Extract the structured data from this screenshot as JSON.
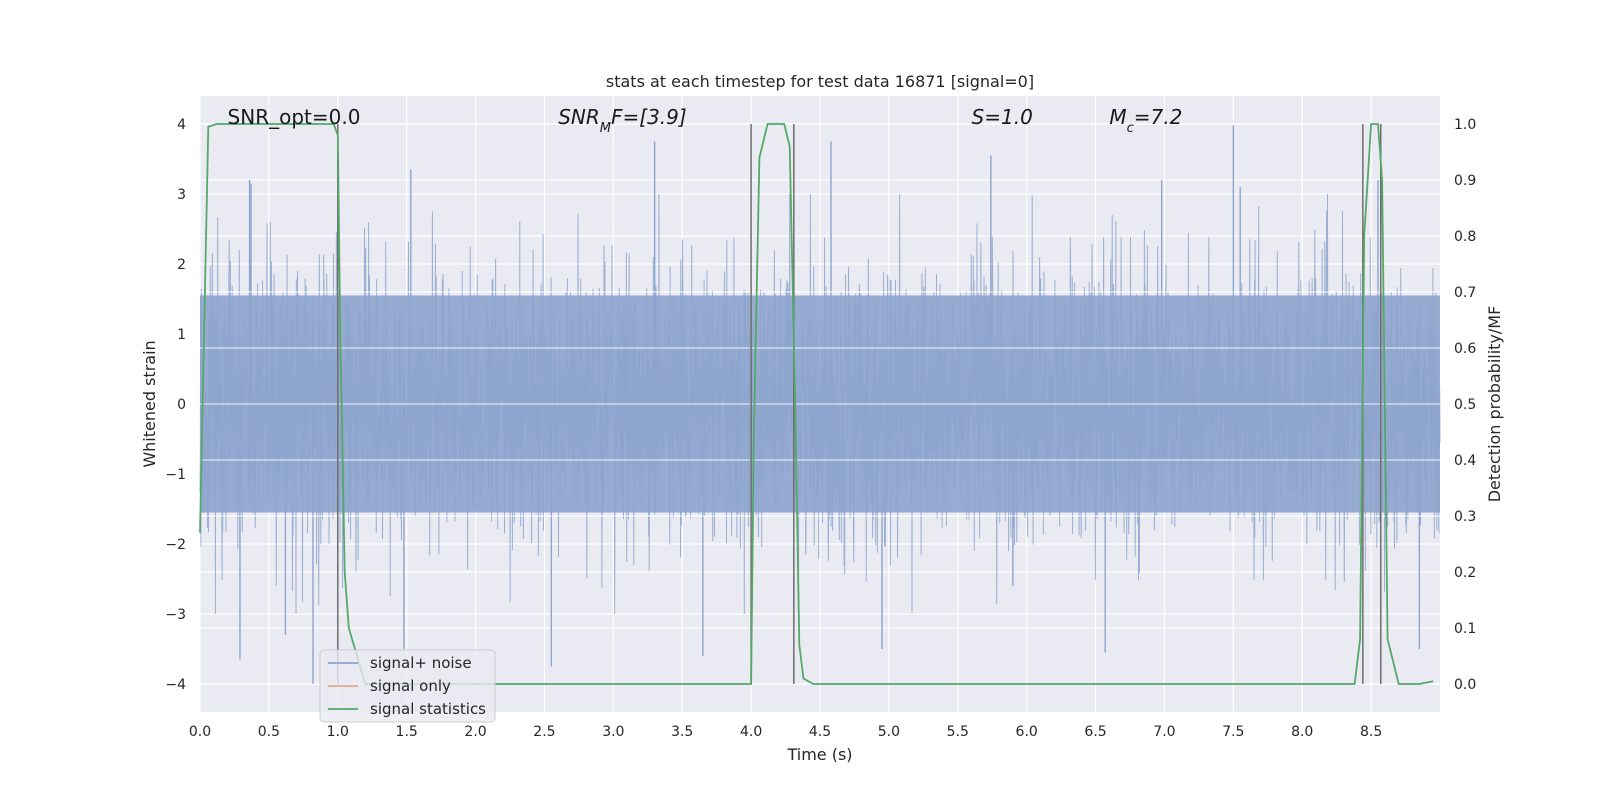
{
  "chart_data": {
    "type": "line",
    "title": "stats at each timestep for test data 16871 [signal=0]",
    "xlabel": "Time (s)",
    "ylabel": "Whitened strain",
    "y2label": "Detection probability/MF",
    "xlim": [
      0.0,
      9.0
    ],
    "ylim": [
      -4.4,
      4.4
    ],
    "y2lim": [
      -0.05,
      1.05
    ],
    "xticks": [
      "0.0",
      "0.5",
      "1.0",
      "1.5",
      "2.0",
      "2.5",
      "3.0",
      "3.5",
      "4.0",
      "4.5",
      "5.0",
      "5.5",
      "6.0",
      "6.5",
      "7.0",
      "7.5",
      "8.0",
      "8.5"
    ],
    "yticks": [
      "4",
      "3",
      "2",
      "1",
      "0",
      "−1",
      "−2",
      "−3",
      "−4"
    ],
    "y2ticks": [
      "1.0",
      "0.9",
      "0.8",
      "0.7",
      "0.6",
      "0.5",
      "0.4",
      "0.3",
      "0.2",
      "0.1",
      "0.0"
    ],
    "grid": true,
    "legend_placement": "lower-left",
    "annotations": [
      {
        "text": "SNR_opt=0.0",
        "x": 0.2
      },
      {
        "html": "SNR<tspan baseline-shift='sub' font-size='13'>M</tspan>F=[3.9]",
        "text": "SNRMF=[3.9]",
        "x": 2.6
      },
      {
        "html": "S=1.0",
        "text": "S=1.0",
        "x": 5.6
      },
      {
        "html": "M<tspan baseline-shift='sub' font-size='13'>c</tspan>=7.2",
        "text": "Mc=7.2",
        "x": 6.6
      }
    ],
    "series": [
      {
        "name": "signal+ noise",
        "color": "#8da4cd",
        "axis": "left",
        "description_only": true,
        "sample_rate": 2048,
        "x_range": [
          0.0,
          9.0
        ],
        "amplitude_std": 1.0
      },
      {
        "name": "signal only",
        "color": "#e8a48a",
        "axis": "left",
        "x": [],
        "y": []
      },
      {
        "name": "signal statistics",
        "color": "#55a868",
        "axis": "right",
        "x": [
          0.0,
          0.06,
          0.12,
          0.25,
          0.5,
          0.75,
          0.97,
          1.0,
          1.02,
          1.05,
          1.08,
          1.2,
          1.5,
          2.0,
          3.0,
          3.5,
          3.95,
          4.0,
          4.02,
          4.06,
          4.12,
          4.18,
          4.24,
          4.28,
          4.32,
          4.35,
          4.38,
          4.45,
          5.0,
          6.0,
          7.0,
          8.0,
          8.38,
          8.42,
          8.45,
          8.5,
          8.55,
          8.58,
          8.62,
          8.7,
          8.75,
          8.85,
          8.95
        ],
        "y": [
          0.27,
          0.995,
          1.0,
          1.0,
          1.0,
          1.0,
          1.0,
          0.98,
          0.6,
          0.2,
          0.1,
          0.0,
          0.0,
          0.0,
          0.0,
          0.0,
          0.0,
          0.0,
          0.45,
          0.94,
          1.0,
          1.0,
          1.0,
          0.96,
          0.5,
          0.07,
          0.01,
          0.0,
          0.0,
          0.0,
          0.0,
          0.0,
          0.0,
          0.08,
          0.8,
          1.0,
          1.0,
          0.9,
          0.08,
          0.0,
          0.0,
          0.0,
          0.005
        ]
      }
    ],
    "vlines": {
      "color": "#6e6e6e",
      "x": [
        1.0,
        4.0,
        4.31,
        8.44,
        8.57
      ],
      "y2_range": [
        0.0,
        1.0
      ]
    },
    "noise_spikes": [
      {
        "x": 0.36,
        "y": 3.2
      },
      {
        "x": 0.37,
        "y": 3.15
      },
      {
        "x": 0.82,
        "y": -4.0
      },
      {
        "x": 0.62,
        "y": -3.3
      },
      {
        "x": 0.29,
        "y": -3.65
      },
      {
        "x": 1.53,
        "y": 3.35
      },
      {
        "x": 1.48,
        "y": -3.5
      },
      {
        "x": 3.3,
        "y": 3.75
      },
      {
        "x": 2.55,
        "y": -3.75
      },
      {
        "x": 3.65,
        "y": -3.6
      },
      {
        "x": 5.74,
        "y": 3.55
      },
      {
        "x": 5.9,
        "y": -2.6
      },
      {
        "x": 7.5,
        "y": 3.98
      },
      {
        "x": 7.55,
        "y": 3.1
      },
      {
        "x": 8.55,
        "y": 3.2
      },
      {
        "x": 6.57,
        "y": -3.55
      },
      {
        "x": 4.58,
        "y": 3.75
      },
      {
        "x": 4.95,
        "y": -3.5
      },
      {
        "x": 6.98,
        "y": 3.2
      },
      {
        "x": 8.85,
        "y": -3.5
      }
    ]
  },
  "legend": {
    "items": [
      {
        "label": "signal+ noise",
        "color": "#8da4cd"
      },
      {
        "label": "signal only",
        "color": "#e8a48a"
      },
      {
        "label": "signal statistics",
        "color": "#55a868"
      }
    ]
  }
}
